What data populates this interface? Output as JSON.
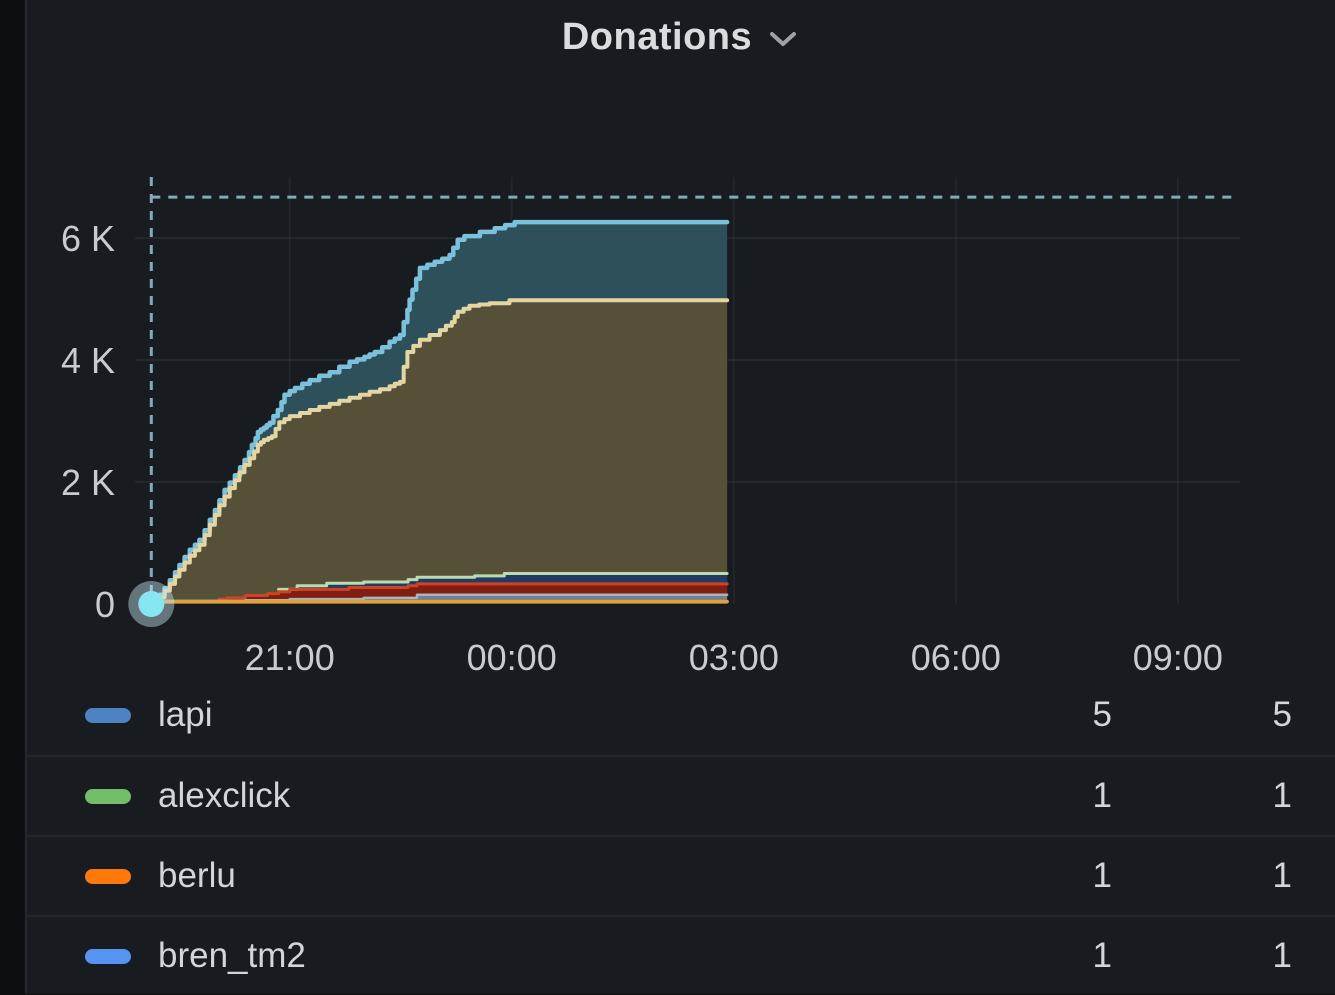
{
  "panel": {
    "title": "Donations"
  },
  "chart_data": {
    "type": "area",
    "stacked": true,
    "title": "Donations",
    "grid": true,
    "x_axis": {
      "unit": "time",
      "tick_labels": [
        "21:00",
        "00:00",
        "03:00",
        "06:00",
        "09:00"
      ],
      "tick_hours_from_2100": [
        0,
        3,
        6,
        9,
        12
      ],
      "range_hours_from_2100": [
        -2.09,
        12.84
      ]
    },
    "y_axis": {
      "tick_labels": [
        "0",
        "2 K",
        "4 K",
        "6 K"
      ],
      "tick_values_k": [
        0,
        2,
        4,
        6
      ],
      "range_k": [
        0,
        6.95
      ]
    },
    "data_start_hour_from_2100": -1.87,
    "data_end_hour_from_2100": 5.91,
    "annotations": {
      "dashed_vline_t": -1.87,
      "dashed_hline_value_k": 6.67,
      "dash_color": "#86A9B8",
      "origin_marker": {
        "t": -1.87,
        "value_k": 0,
        "inner_color": "#86E7F3",
        "halo_color": "rgba(195,228,234,0.45)"
      }
    },
    "curves": [
      {
        "name": "cyan-total",
        "line": "#7CC1DB",
        "fill": "#2E505A",
        "width": 4.5,
        "points": [
          [
            -1.87,
            0
          ],
          [
            -1.8,
            0.07
          ],
          [
            -1.76,
            0.15
          ],
          [
            -1.69,
            0.26
          ],
          [
            -1.62,
            0.39
          ],
          [
            -1.55,
            0.52
          ],
          [
            -1.49,
            0.64
          ],
          [
            -1.42,
            0.77
          ],
          [
            -1.35,
            0.89
          ],
          [
            -1.28,
            0.97
          ],
          [
            -1.22,
            1.05
          ],
          [
            -1.15,
            1.21
          ],
          [
            -1.08,
            1.38
          ],
          [
            -1.01,
            1.54
          ],
          [
            -0.95,
            1.7
          ],
          [
            -0.88,
            1.87
          ],
          [
            -0.81,
            1.99
          ],
          [
            -0.74,
            2.11
          ],
          [
            -0.67,
            2.24
          ],
          [
            -0.61,
            2.36
          ],
          [
            -0.55,
            2.49
          ],
          [
            -0.51,
            2.61
          ],
          [
            -0.46,
            2.72
          ],
          [
            -0.43,
            2.82
          ],
          [
            -0.39,
            2.86
          ],
          [
            -0.35,
            2.89
          ],
          [
            -0.31,
            2.93
          ],
          [
            -0.27,
            2.97
          ],
          [
            -0.22,
            3.08
          ],
          [
            -0.16,
            3.18
          ],
          [
            -0.11,
            3.31
          ],
          [
            -0.07,
            3.43
          ],
          [
            0,
            3.49
          ],
          [
            0.07,
            3.54
          ],
          [
            0.17,
            3.61
          ],
          [
            0.27,
            3.67
          ],
          [
            0.4,
            3.74
          ],
          [
            0.54,
            3.8
          ],
          [
            0.67,
            3.89
          ],
          [
            0.81,
            3.97
          ],
          [
            0.91,
            4.01
          ],
          [
            1.01,
            4.05
          ],
          [
            1.08,
            4.09
          ],
          [
            1.15,
            4.13
          ],
          [
            1.25,
            4.21
          ],
          [
            1.35,
            4.3
          ],
          [
            1.42,
            4.35
          ],
          [
            1.49,
            4.41
          ],
          [
            1.54,
            4.62
          ],
          [
            1.59,
            4.82
          ],
          [
            1.62,
            4.99
          ],
          [
            1.66,
            5.15
          ],
          [
            1.71,
            5.33
          ],
          [
            1.76,
            5.51
          ],
          [
            1.86,
            5.56
          ],
          [
            1.96,
            5.61
          ],
          [
            2.06,
            5.66
          ],
          [
            2.16,
            5.72
          ],
          [
            2.21,
            5.84
          ],
          [
            2.27,
            5.97
          ],
          [
            2.36,
            6.03
          ],
          [
            2.57,
            6.1
          ],
          [
            2.77,
            6.16
          ],
          [
            2.91,
            6.21
          ],
          [
            3.04,
            6.26
          ],
          [
            5.91,
            6.26
          ]
        ]
      },
      {
        "name": "tan",
        "line": "#E3D6A3",
        "fill": "#575039",
        "width": 4,
        "points": [
          [
            -1.87,
            0
          ],
          [
            -1.8,
            0.05
          ],
          [
            -1.76,
            0.11
          ],
          [
            -1.69,
            0.22
          ],
          [
            -1.62,
            0.33
          ],
          [
            -1.55,
            0.45
          ],
          [
            -1.49,
            0.56
          ],
          [
            -1.42,
            0.68
          ],
          [
            -1.35,
            0.79
          ],
          [
            -1.28,
            0.88
          ],
          [
            -1.22,
            0.97
          ],
          [
            -1.15,
            1.13
          ],
          [
            -1.08,
            1.3
          ],
          [
            -1.01,
            1.46
          ],
          [
            -0.95,
            1.62
          ],
          [
            -0.88,
            1.76
          ],
          [
            -0.81,
            1.9
          ],
          [
            -0.74,
            2.03
          ],
          [
            -0.68,
            2.16
          ],
          [
            -0.61,
            2.28
          ],
          [
            -0.54,
            2.39
          ],
          [
            -0.48,
            2.5
          ],
          [
            -0.43,
            2.61
          ],
          [
            -0.39,
            2.65
          ],
          [
            -0.35,
            2.69
          ],
          [
            -0.29,
            2.72
          ],
          [
            -0.24,
            2.75
          ],
          [
            -0.19,
            2.87
          ],
          [
            -0.14,
            2.98
          ],
          [
            -0.07,
            3.03
          ],
          [
            0,
            3.08
          ],
          [
            0.14,
            3.13
          ],
          [
            0.27,
            3.18
          ],
          [
            0.4,
            3.23
          ],
          [
            0.54,
            3.28
          ],
          [
            0.67,
            3.33
          ],
          [
            0.81,
            3.38
          ],
          [
            0.95,
            3.43
          ],
          [
            1.08,
            3.48
          ],
          [
            1.22,
            3.52
          ],
          [
            1.35,
            3.57
          ],
          [
            1.42,
            3.61
          ],
          [
            1.49,
            3.64
          ],
          [
            1.54,
            3.89
          ],
          [
            1.59,
            4.13
          ],
          [
            1.67,
            4.23
          ],
          [
            1.76,
            4.33
          ],
          [
            1.89,
            4.41
          ],
          [
            2.03,
            4.49
          ],
          [
            2.11,
            4.56
          ],
          [
            2.19,
            4.62
          ],
          [
            2.23,
            4.71
          ],
          [
            2.27,
            4.79
          ],
          [
            2.35,
            4.84
          ],
          [
            2.43,
            4.89
          ],
          [
            2.56,
            4.91
          ],
          [
            2.7,
            4.93
          ],
          [
            2.97,
            4.98
          ],
          [
            5.91,
            4.98
          ]
        ]
      },
      {
        "name": "navy-band",
        "line": "#BCDCAE",
        "fill": "#243A63",
        "width": 3,
        "points": [
          [
            -0.15,
            0.24
          ],
          [
            0.1,
            0.3
          ],
          [
            0.5,
            0.34
          ],
          [
            1,
            0.36
          ],
          [
            1.6,
            0.4
          ],
          [
            1.72,
            0.44
          ],
          [
            2.5,
            0.46
          ],
          [
            2.9,
            0.5
          ],
          [
            5.91,
            0.5
          ]
        ]
      },
      {
        "name": "red-band",
        "line": "#CC4426",
        "fill": "#801E12",
        "width": 3,
        "points": [
          [
            -0.95,
            0.08
          ],
          [
            -0.85,
            0.1
          ],
          [
            -0.6,
            0.14
          ],
          [
            -0.3,
            0.17
          ],
          [
            -0.15,
            0.2
          ],
          [
            0,
            0.24
          ],
          [
            0.8,
            0.27
          ],
          [
            1.6,
            0.3
          ],
          [
            1.72,
            0.33
          ],
          [
            5.91,
            0.33
          ]
        ]
      },
      {
        "name": "slate-band",
        "line": "#A9B4BE",
        "fill": "#75808C",
        "width": 2.5,
        "points": [
          [
            -1.87,
            0.05
          ],
          [
            -0.6,
            0.06
          ],
          [
            0,
            0.08
          ],
          [
            1,
            0.1
          ],
          [
            1.72,
            0.15
          ],
          [
            5.91,
            0.15
          ]
        ]
      },
      {
        "name": "amber-band",
        "line": "#E3A13C",
        "fill": "#6B5524",
        "width": 3.5,
        "points": [
          [
            -1.87,
            0.04
          ],
          [
            5.91,
            0.04
          ]
        ]
      }
    ],
    "legend": {
      "position": "bottom",
      "value_columns": 2,
      "rows": [
        {
          "label": "lapi",
          "color": "#4D82C4",
          "values": [
            "5",
            "5"
          ]
        },
        {
          "label": "alexclick",
          "color": "#73BF69",
          "values": [
            "1",
            "1"
          ]
        },
        {
          "label": "berlu",
          "color": "#FF780A",
          "values": [
            "1",
            "1"
          ]
        },
        {
          "label": "bren_tm2",
          "color": "#5794F2",
          "values": [
            "1",
            "1"
          ]
        }
      ]
    }
  }
}
